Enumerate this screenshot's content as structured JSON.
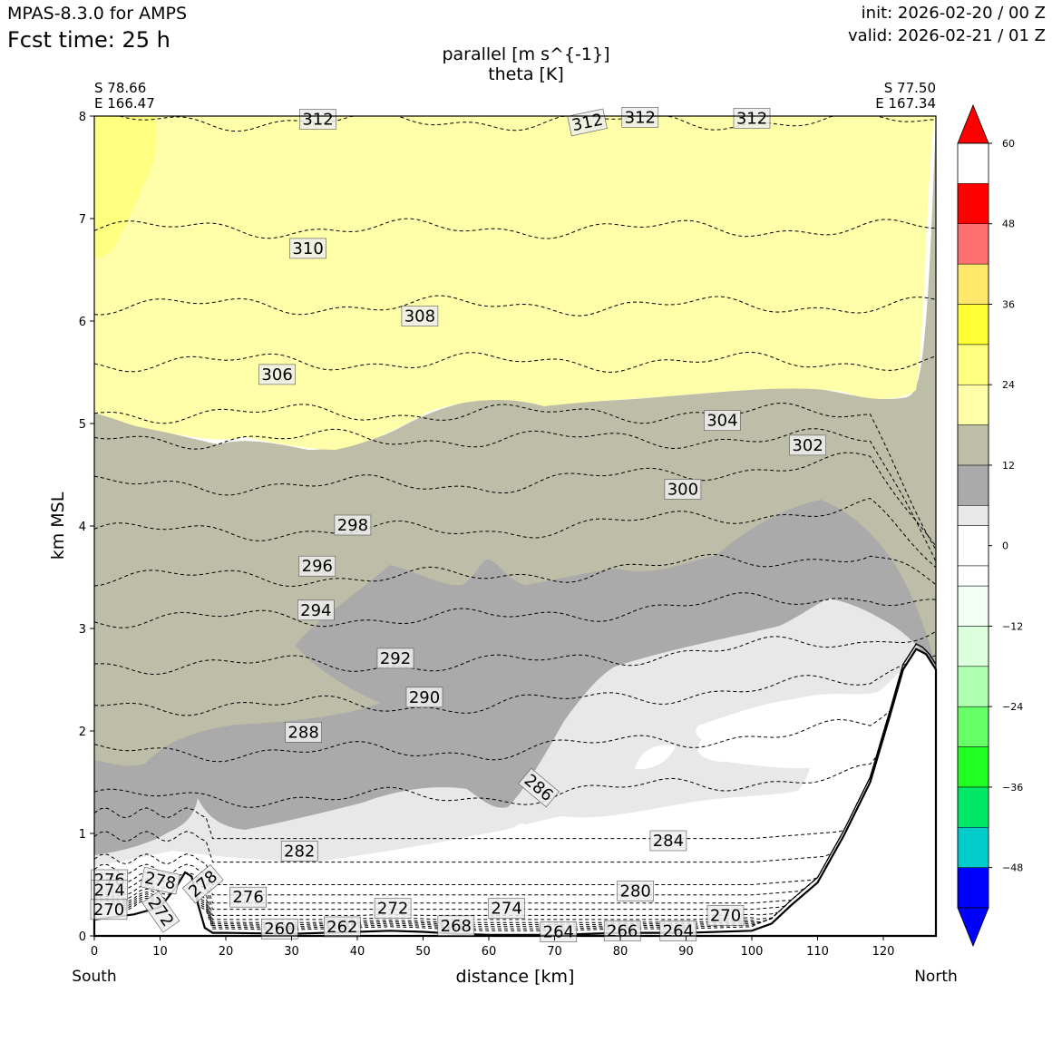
{
  "header": {
    "model": "MPAS-8.3.0 for AMPS",
    "fcst_time": "Fcst time:   25 h",
    "init": "init: 2026-02-20 / 00 Z",
    "valid": "valid: 2026-02-21 / 01 Z",
    "title_line1": "parallel [m s^{-1}]",
    "title_line2": "theta [K]"
  },
  "endpoints": {
    "left_lat": "S 78.66",
    "left_lon": "E 166.47",
    "right_lat": "S 77.50",
    "right_lon": "E 167.34",
    "left_label": "South",
    "right_label": "North"
  },
  "chart_data": {
    "type": "cross-section contour",
    "xlabel": "distance [km]",
    "ylabel": "km MSL",
    "xlim": [
      0,
      128
    ],
    "ylim": [
      0,
      8
    ],
    "xticks": [
      "0",
      "10",
      "20",
      "30",
      "40",
      "50",
      "60",
      "70",
      "80",
      "90",
      "100",
      "110",
      "120"
    ],
    "yticks": [
      "0",
      "1",
      "2",
      "3",
      "4",
      "5",
      "6",
      "7",
      "8"
    ],
    "filled_field": "parallel wind [m s^-1]",
    "colorbar": {
      "levels": [
        -54,
        -48,
        -42,
        -36,
        -30,
        -24,
        -18,
        -12,
        -6,
        -3,
        3,
        6,
        12,
        18,
        24,
        30,
        36,
        42,
        48,
        54,
        60
      ],
      "tick_values": [
        60,
        48,
        36,
        24,
        12,
        0,
        -12,
        -24,
        -36,
        -48
      ],
      "tick_labels": [
        "60",
        "48",
        "36",
        "24",
        "12",
        "0",
        "−12",
        "−24",
        "−36",
        "−48"
      ],
      "colors_top_to_bottom": [
        "#ff0000",
        "#ff7070",
        "#ffe86a",
        "#ffff33",
        "#ffff80",
        "#ffffaa",
        "#bebea8",
        "#aaaaaa",
        "#e8e8e8",
        "#ffffff",
        "#ffffff",
        "#f2fff2",
        "#dcffdc",
        "#b0ffb0",
        "#66ff66",
        "#22ff22",
        "#00e866",
        "#00cccc",
        "#0000ff"
      ],
      "over_color": "#ff0000",
      "under_color": "#0000ff"
    },
    "theta_contour_levels": [
      260,
      262,
      264,
      266,
      268,
      270,
      272,
      274,
      276,
      278,
      280,
      282,
      284,
      286,
      288,
      290,
      292,
      294,
      296,
      298,
      300,
      302,
      304,
      306,
      308,
      310,
      312
    ],
    "theta_labels": [
      {
        "text": "312",
        "x": 34,
        "z": 7.96
      },
      {
        "text": "312",
        "x": 75,
        "z": 7.93
      },
      {
        "text": "312",
        "x": 83,
        "z": 7.98
      },
      {
        "text": "312",
        "x": 100,
        "z": 7.97
      },
      {
        "text": "310",
        "x": 32.5,
        "z": 6.7
      },
      {
        "text": "308",
        "x": 49.5,
        "z": 6.04
      },
      {
        "text": "306",
        "x": 27.8,
        "z": 5.47
      },
      {
        "text": "304",
        "x": 95.5,
        "z": 5.02
      },
      {
        "text": "302",
        "x": 108.5,
        "z": 4.78
      },
      {
        "text": "300",
        "x": 89.5,
        "z": 4.35
      },
      {
        "text": "298",
        "x": 39.3,
        "z": 4.0
      },
      {
        "text": "296",
        "x": 33.9,
        "z": 3.6
      },
      {
        "text": "294",
        "x": 33.7,
        "z": 3.17
      },
      {
        "text": "292",
        "x": 45.8,
        "z": 2.7
      },
      {
        "text": "290",
        "x": 50.2,
        "z": 2.32
      },
      {
        "text": "288",
        "x": 31.8,
        "z": 1.98
      },
      {
        "text": "286",
        "x": 67.5,
        "z": 1.44
      },
      {
        "text": "284",
        "x": 87.3,
        "z": 0.92
      },
      {
        "text": "282",
        "x": 31.2,
        "z": 0.82
      },
      {
        "text": "280",
        "x": 82.3,
        "z": 0.43
      },
      {
        "text": "278",
        "x": 10.0,
        "z": 0.53
      },
      {
        "text": "278",
        "x": 16.6,
        "z": 0.5
      },
      {
        "text": "276",
        "x": 2.3,
        "z": 0.54
      },
      {
        "text": "276",
        "x": 23.4,
        "z": 0.37
      },
      {
        "text": "274",
        "x": 2.3,
        "z": 0.44
      },
      {
        "text": "274",
        "x": 62.7,
        "z": 0.26
      },
      {
        "text": "272",
        "x": 10.0,
        "z": 0.23
      },
      {
        "text": "272",
        "x": 45.4,
        "z": 0.26
      },
      {
        "text": "270",
        "x": 2.2,
        "z": 0.25
      },
      {
        "text": "270",
        "x": 96.0,
        "z": 0.19
      },
      {
        "text": "268",
        "x": 55.0,
        "z": 0.09
      },
      {
        "text": "266",
        "x": 80.3,
        "z": 0.04
      },
      {
        "text": "264",
        "x": 70.6,
        "z": 0.03
      },
      {
        "text": "264",
        "x": 88.8,
        "z": 0.04
      },
      {
        "text": "262",
        "x": 37.7,
        "z": 0.08
      },
      {
        "text": "260",
        "x": 28.2,
        "z": 0.06
      }
    ],
    "terrain_height_km": [
      [
        0,
        0.16
      ],
      [
        6,
        0.21
      ],
      [
        10,
        0.28
      ],
      [
        12.5,
        0.48
      ],
      [
        13.8,
        0.62
      ],
      [
        14.8,
        0.58
      ],
      [
        15.8,
        0.3
      ],
      [
        16.8,
        0.08
      ],
      [
        18,
        0.03
      ],
      [
        20,
        0.03
      ],
      [
        30,
        0.02
      ],
      [
        40,
        0.04
      ],
      [
        45,
        0.05
      ],
      [
        50,
        0.04
      ],
      [
        55,
        0.02
      ],
      [
        60,
        0.01
      ],
      [
        70,
        0.01
      ],
      [
        80,
        0.03
      ],
      [
        90,
        0.03
      ],
      [
        100,
        0.05
      ],
      [
        103,
        0.12
      ],
      [
        106,
        0.3
      ],
      [
        110,
        0.52
      ],
      [
        114,
        0.98
      ],
      [
        118,
        1.5
      ],
      [
        121,
        2.15
      ],
      [
        123,
        2.6
      ],
      [
        125,
        2.8
      ],
      [
        126.5,
        2.75
      ],
      [
        128,
        2.6
      ]
    ]
  }
}
